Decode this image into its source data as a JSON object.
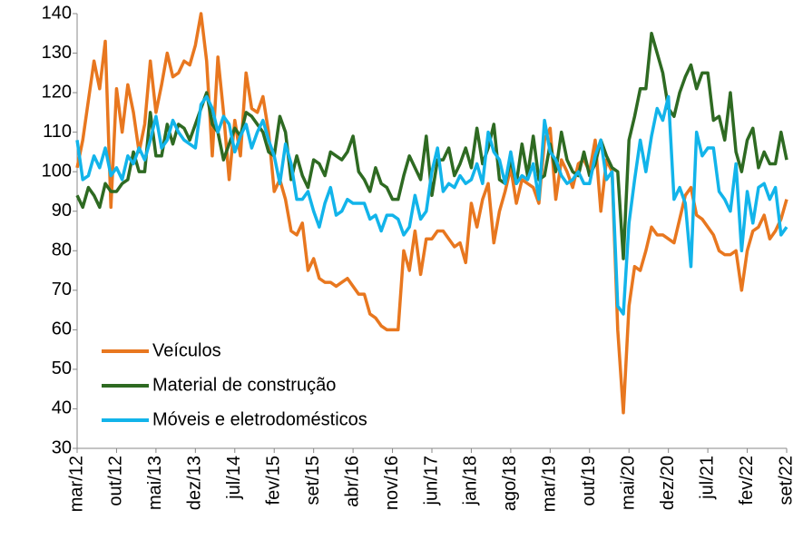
{
  "chart_data": {
    "type": "line",
    "categories": [
      "mar/12",
      null,
      null,
      null,
      null,
      null,
      null,
      "out/12",
      null,
      null,
      null,
      null,
      null,
      null,
      "mai/13",
      null,
      null,
      null,
      null,
      null,
      null,
      "dez/13",
      null,
      null,
      null,
      null,
      null,
      null,
      "jul/14",
      null,
      null,
      null,
      null,
      null,
      null,
      "fev/15",
      null,
      null,
      null,
      null,
      null,
      null,
      "set/15",
      null,
      null,
      null,
      null,
      null,
      null,
      "abr/16",
      null,
      null,
      null,
      null,
      null,
      null,
      "nov/16",
      null,
      null,
      null,
      null,
      null,
      null,
      "jun/17",
      null,
      null,
      null,
      null,
      null,
      null,
      "jan/18",
      null,
      null,
      null,
      null,
      null,
      null,
      "ago/18",
      null,
      null,
      null,
      null,
      null,
      null,
      "mar/19",
      null,
      null,
      null,
      null,
      null,
      null,
      "out/19",
      null,
      null,
      null,
      null,
      null,
      null,
      "mai/20",
      null,
      null,
      null,
      null,
      null,
      null,
      "dez/20",
      null,
      null,
      null,
      null,
      null,
      null,
      "jul/21",
      null,
      null,
      null,
      null,
      null,
      null,
      "fev/22",
      null,
      null,
      null,
      null,
      null,
      null,
      "set/22"
    ],
    "series": [
      {
        "name": "Veículos",
        "color": "#e8771f",
        "values": [
          101,
          108,
          118,
          128,
          121,
          133,
          91,
          121,
          110,
          122,
          115,
          105,
          112,
          128,
          115,
          122,
          130,
          124,
          125,
          128,
          127,
          132,
          140,
          128,
          104,
          129,
          115,
          98,
          113,
          104,
          125,
          116,
          115,
          119,
          110,
          95,
          98,
          93,
          85,
          84,
          87,
          75,
          78,
          73,
          72,
          72,
          71,
          72,
          73,
          71,
          69,
          69,
          64,
          63,
          61,
          60,
          60,
          60,
          80,
          75,
          85,
          74,
          83,
          83,
          85,
          85,
          83,
          81,
          82,
          77,
          92,
          86,
          93,
          97,
          82,
          90,
          95,
          101,
          92,
          98,
          97,
          96,
          92,
          108,
          111,
          93,
          103,
          100,
          96,
          102,
          103,
          100,
          108,
          90,
          103,
          100,
          60,
          39,
          66,
          76,
          75,
          80,
          86,
          84,
          84,
          83,
          82,
          88,
          94,
          96,
          89,
          88,
          86,
          84,
          80,
          79,
          79,
          80,
          70,
          80,
          85,
          86,
          89,
          83,
          85,
          88,
          93
        ]
      },
      {
        "name": "Material de construção",
        "color": "#2e6a22",
        "values": [
          94,
          91,
          96,
          94,
          91,
          97,
          95,
          95,
          97,
          98,
          105,
          100,
          100,
          115,
          104,
          104,
          112,
          107,
          112,
          111,
          108,
          112,
          116,
          120,
          112,
          110,
          103,
          107,
          111,
          109,
          115,
          114,
          112,
          110,
          105,
          104,
          114,
          110,
          98,
          104,
          99,
          96,
          103,
          102,
          99,
          105,
          104,
          103,
          105,
          109,
          100,
          98,
          95,
          101,
          97,
          96,
          93,
          93,
          99,
          104,
          101,
          98,
          109,
          94,
          103,
          103,
          106,
          99,
          102,
          106,
          101,
          111,
          102,
          106,
          112,
          98,
          97,
          103,
          97,
          107,
          99,
          109,
          98,
          99,
          107,
          100,
          110,
          103,
          100,
          99,
          105,
          99,
          102,
          108,
          104,
          101,
          100,
          78,
          108,
          114,
          121,
          121,
          135,
          130,
          125,
          116,
          114,
          120,
          124,
          127,
          121,
          125,
          125,
          113,
          114,
          108,
          120,
          105,
          100,
          108,
          111,
          101,
          105,
          102,
          102,
          110,
          103
        ]
      },
      {
        "name": "Móveis e eletrodomésticos",
        "color": "#12b4ea",
        "values": [
          108,
          98,
          99,
          104,
          101,
          106,
          99,
          101,
          98,
          104,
          102,
          106,
          103,
          108,
          114,
          106,
          108,
          113,
          110,
          108,
          107,
          106,
          117,
          119,
          116,
          110,
          114,
          112,
          105,
          109,
          112,
          106,
          110,
          113,
          108,
          104,
          97,
          107,
          102,
          93,
          93,
          95,
          90,
          86,
          92,
          96,
          89,
          90,
          93,
          92,
          92,
          92,
          88,
          89,
          85,
          89,
          89,
          88,
          84,
          86,
          94,
          88,
          90,
          100,
          106,
          95,
          97,
          96,
          99,
          97,
          98,
          102,
          97,
          110,
          105,
          103,
          97,
          105,
          97,
          99,
          98,
          102,
          93,
          113,
          105,
          103,
          99,
          97,
          98,
          100,
          97,
          97,
          104,
          108,
          98,
          100,
          66,
          64,
          87,
          98,
          108,
          100,
          109,
          116,
          113,
          119,
          93,
          96,
          92,
          76,
          110,
          104,
          106,
          106,
          95,
          93,
          90,
          102,
          80,
          95,
          87,
          96,
          97,
          93,
          96,
          84,
          86
        ]
      }
    ],
    "ylim": [
      30,
      140
    ],
    "yticks": [
      30,
      40,
      50,
      60,
      70,
      80,
      90,
      100,
      110,
      120,
      130,
      140
    ],
    "grid": false,
    "legend": "lower left"
  }
}
